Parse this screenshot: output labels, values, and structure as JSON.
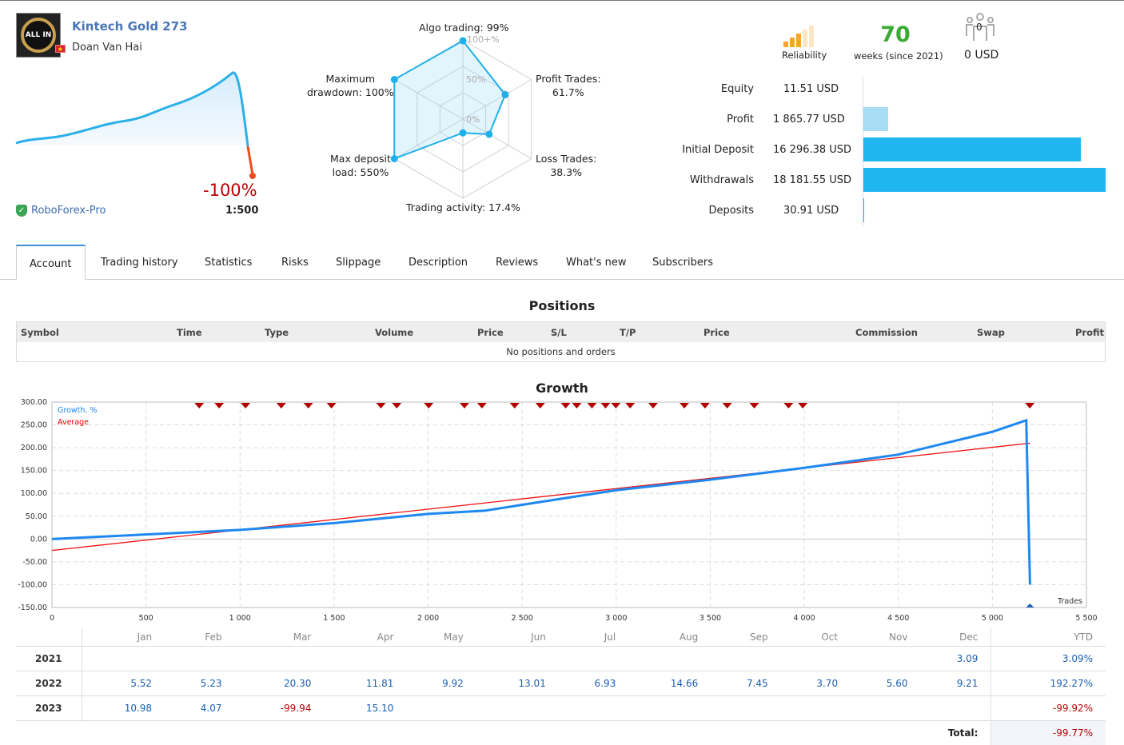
{
  "header": {
    "title": "Kintech Gold 273",
    "author": "Doan Van Hai",
    "avatar_text": "ALL IN",
    "growth": "-100%",
    "leverage": "1:500",
    "broker": "RoboForex-Pro"
  },
  "reliability": {
    "label": "Reliability",
    "level": 3,
    "max": 5
  },
  "weeks": {
    "value": "70",
    "label": "weeks (since 2021)"
  },
  "subscribers": {
    "count": "0",
    "funds": "0 USD"
  },
  "radar": {
    "scale_labels": [
      "100+%",
      "50%",
      "0%"
    ],
    "axes": [
      {
        "label1": "Algo trading: 99%",
        "label2": "",
        "value": 99
      },
      {
        "label1": "Profit Trades:",
        "label2": "61.7%",
        "value": 61.7
      },
      {
        "label1": "Loss Trades:",
        "label2": "38.3%",
        "value": 38.3
      },
      {
        "label1": "Trading activity: 17.4%",
        "label2": "",
        "value": 17.4
      },
      {
        "label1": "Max deposit",
        "label2": "load: 550%",
        "value": 550
      },
      {
        "label1": "Maximum",
        "label2": "drawdown: 100%",
        "value": 100
      }
    ]
  },
  "stats": [
    {
      "label": "Equity",
      "value": "11.51 USD",
      "amount": 11.51,
      "color": "#1fb5ee"
    },
    {
      "label": "Profit",
      "value": "1 865.77 USD",
      "amount": 1865.77,
      "color": "#a8dcf5"
    },
    {
      "label": "Initial Deposit",
      "value": "16 296.38 USD",
      "amount": 16296.38,
      "color": "#1fb5ee"
    },
    {
      "label": "Withdrawals",
      "value": "18 181.55 USD",
      "amount": 18181.55,
      "color": "#1fb5ee"
    },
    {
      "label": "Deposits",
      "value": "30.91 USD",
      "amount": 30.91,
      "color": "#1fb5ee"
    }
  ],
  "tabs": [
    "Account",
    "Trading history",
    "Statistics",
    "Risks",
    "Slippage",
    "Description",
    "Reviews",
    "What's new",
    "Subscribers"
  ],
  "positions": {
    "title": "Positions",
    "columns": [
      "Symbol",
      "Time",
      "Type",
      "Volume",
      "Price",
      "S/L",
      "T/P",
      "Price",
      "Commission",
      "Swap",
      "Profit"
    ],
    "empty": "No positions and orders"
  },
  "growth_title": "Growth",
  "chart_data": {
    "type": "line",
    "title": "Growth",
    "xlabel": "Trades",
    "ylabel": "",
    "xlim": [
      0,
      5500
    ],
    "ylim": [
      -150,
      300
    ],
    "xticks": [
      "0",
      "500",
      "1 000",
      "1 500",
      "2 000",
      "2 500",
      "3 000",
      "3 500",
      "4 000",
      "4 500",
      "5 000",
      "5 500"
    ],
    "yticks": [
      "300.00",
      "250.00",
      "200.00",
      "150.00",
      "100.00",
      "50.00",
      "0.00",
      "-50.00",
      "-100.00",
      "-150.00"
    ],
    "legend": [
      "Growth, %",
      "Average"
    ],
    "series": [
      {
        "name": "Growth, %",
        "color": "#1e88f0",
        "points": [
          [
            0,
            0
          ],
          [
            500,
            10
          ],
          [
            1000,
            20
          ],
          [
            1500,
            35
          ],
          [
            2000,
            55
          ],
          [
            2300,
            62
          ],
          [
            2500,
            75
          ],
          [
            3000,
            107
          ],
          [
            3500,
            130
          ],
          [
            4000,
            156
          ],
          [
            4500,
            185
          ],
          [
            5000,
            235
          ],
          [
            5180,
            260
          ],
          [
            5200,
            -100
          ]
        ]
      },
      {
        "name": "Average",
        "color": "#ee1111",
        "points": [
          [
            0,
            -25
          ],
          [
            5200,
            210
          ]
        ]
      }
    ],
    "markers": [
      783,
      889,
      1029,
      1219,
      1363,
      1486,
      1749,
      1833,
      2003,
      2193,
      2286,
      2460,
      2596,
      2731,
      2790,
      2871,
      2943,
      2998,
      3074,
      3196,
      3362,
      3472,
      3590,
      3734,
      3916,
      3992,
      5199
    ]
  },
  "monthly": {
    "months": [
      "Jan",
      "Feb",
      "Mar",
      "Apr",
      "May",
      "Jun",
      "Jul",
      "Aug",
      "Sep",
      "Oct",
      "Nov",
      "Dec"
    ],
    "ytd_label": "YTD",
    "rows": [
      {
        "year": "2021",
        "values": [
          "",
          "",
          "",
          "",
          "",
          "",
          "",
          "",
          "",
          "",
          "",
          "3.09"
        ],
        "ytd": "3.09%"
      },
      {
        "year": "2022",
        "values": [
          "5.52",
          "5.23",
          "20.30",
          "11.81",
          "9.92",
          "13.01",
          "6.93",
          "14.66",
          "7.45",
          "3.70",
          "5.60",
          "9.21"
        ],
        "ytd": "192.27%"
      },
      {
        "year": "2023",
        "values": [
          "10.98",
          "4.07",
          "-99.94",
          "15.10",
          "",
          "",
          "",
          "",
          "",
          "",
          "",
          ""
        ],
        "ytd": "-99.92%"
      }
    ],
    "total_label": "Total:",
    "total": "-99.77%"
  }
}
